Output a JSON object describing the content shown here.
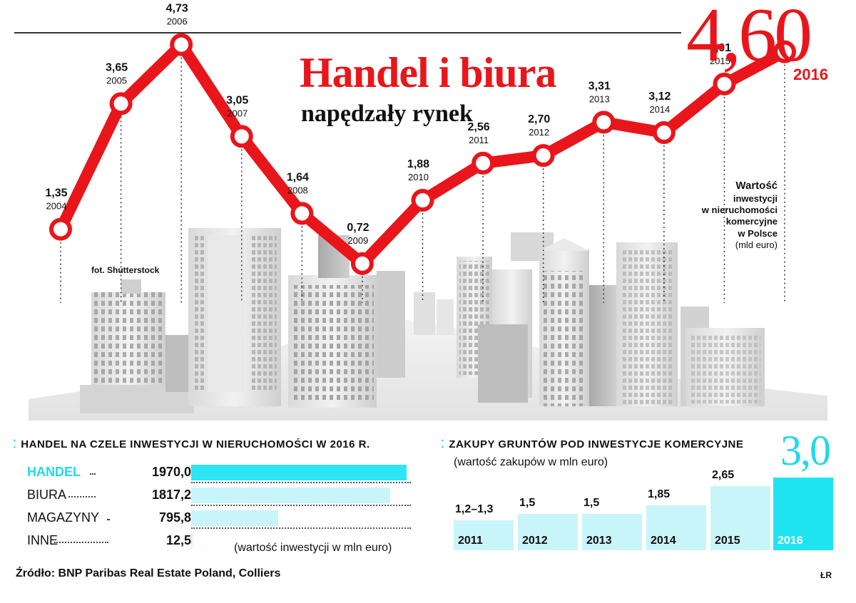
{
  "header": {
    "title": "Handel i biura",
    "subtitle": "napędzały rynek",
    "highlight_value": "4,60",
    "highlight_year": "2016"
  },
  "line_note": {
    "lines": [
      "Wartość",
      "inwestycji",
      "w nieruchomości",
      "komercyjne",
      "w Polsce",
      "(mld euro)"
    ]
  },
  "photo_credit": "fot. Shutterstock",
  "colors": {
    "accent_red": "#e8161b",
    "accent_cyan": "#23d8e8",
    "bar_light": "#c8f5fa"
  },
  "chart_data": [
    {
      "type": "line",
      "title": "Handel i biura napędzały rynek",
      "ylabel": "Wartość inwestycji w nieruchomości komercyjne w Polsce (mld euro)",
      "x": [
        "2004",
        "2005",
        "2006",
        "2007",
        "2008",
        "2009",
        "2010",
        "2011",
        "2012",
        "2013",
        "2014",
        "2015",
        "2016"
      ],
      "values": [
        1.35,
        3.65,
        4.73,
        3.05,
        1.64,
        0.72,
        1.88,
        2.56,
        2.7,
        3.31,
        3.12,
        4.01,
        4.6
      ],
      "labels": [
        "1,35",
        "3,65",
        "4,73",
        "3,05",
        "1,64",
        "0,72",
        "1,88",
        "2,56",
        "2,70",
        "3,31",
        "3,12",
        "4,01",
        "4,60"
      ],
      "ylim": [
        0,
        5
      ]
    },
    {
      "type": "bar",
      "orientation": "horizontal",
      "title": "Handel na czele inwestycji w nieruchomości w 2016 r.",
      "categories": [
        "HANDEL",
        "BIURA",
        "MAGAZYNY",
        "INNE"
      ],
      "values": [
        1970.0,
        1817.2,
        795.8,
        12.5
      ],
      "labels": [
        "1970,0",
        "1817,2",
        "795,8",
        "12,5"
      ],
      "note": "(wartość inwestycji w mln euro)"
    },
    {
      "type": "bar",
      "title": "Zakupy gruntów pod inwestycje komercyjne",
      "subtitle": "(wartość zakupów w mln euro)",
      "categories": [
        "2011",
        "2012",
        "2013",
        "2014",
        "2015",
        "2016"
      ],
      "values": [
        1.25,
        1.5,
        1.5,
        1.85,
        2.65,
        3.0
      ],
      "labels": [
        "1,2–1,3",
        "1,5",
        "1,5",
        "1,85",
        "2,65",
        "3,0"
      ]
    }
  ],
  "footer": {
    "source": "Źródło: BNP Paribas Real Estate Poland, Colliers",
    "author": "ŁR"
  }
}
